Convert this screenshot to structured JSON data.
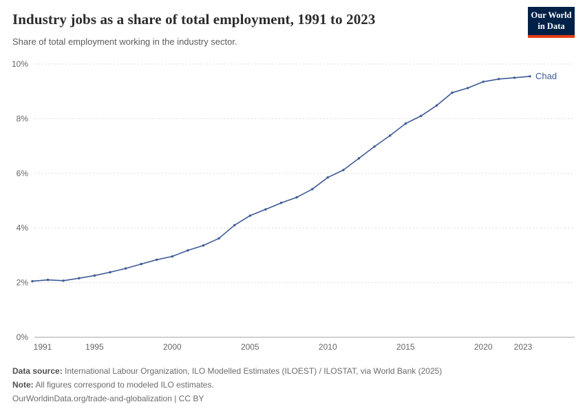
{
  "header": {
    "title": "Industry jobs as a share of total employment, 1991 to 2023",
    "subtitle": "Share of total employment working in the industry sector.",
    "logo": {
      "line1": "Our World",
      "line2": "in Data",
      "bg_color": "#002147",
      "accent_color": "#e63e13"
    }
  },
  "chart_data": {
    "type": "line",
    "title": "Industry jobs as a share of total employment, 1991 to 2023",
    "xlabel": "",
    "ylabel": "",
    "xlim": [
      1991,
      2023
    ],
    "ylim": [
      0,
      10
    ],
    "grid": "horizontal-dashed",
    "legend": "end-of-line-label",
    "grid_color": "#dcdcdc",
    "axis_color": "#a1a1a1",
    "xticks": [
      1991,
      1995,
      2000,
      2005,
      2010,
      2015,
      2020,
      2023
    ],
    "yticks": [
      {
        "value": 0,
        "label": "0%"
      },
      {
        "value": 2,
        "label": "2%"
      },
      {
        "value": 4,
        "label": "4%"
      },
      {
        "value": 6,
        "label": "6%"
      },
      {
        "value": 8,
        "label": "8%"
      },
      {
        "value": 10,
        "label": "10%"
      }
    ],
    "series": [
      {
        "name": "Chad",
        "color": "#3d5a94",
        "x": [
          1991,
          1992,
          1993,
          1994,
          1995,
          1996,
          1997,
          1998,
          1999,
          2000,
          2001,
          2002,
          2003,
          2004,
          2005,
          2006,
          2007,
          2008,
          2009,
          2010,
          2011,
          2012,
          2013,
          2014,
          2015,
          2016,
          2017,
          2018,
          2019,
          2020,
          2021,
          2022,
          2023
        ],
        "values": [
          2.05,
          2.1,
          2.07,
          2.16,
          2.26,
          2.38,
          2.52,
          2.68,
          2.84,
          2.96,
          3.18,
          3.36,
          3.62,
          4.1,
          4.45,
          4.68,
          4.92,
          5.12,
          5.42,
          5.85,
          6.12,
          6.55,
          6.98,
          7.38,
          7.82,
          8.1,
          8.48,
          8.95,
          9.12,
          9.35,
          9.45,
          9.5,
          9.55
        ]
      }
    ]
  },
  "footer": {
    "datasource_label": "Data source:",
    "datasource": "International Labour Organization, ILO Modelled Estimates (ILOEST) / ILOSTAT, via World Bank (2025)",
    "note_label": "Note:",
    "note": "All figures correspond to modeled ILO estimates.",
    "link": "OurWorldinData.org/trade-and-globalization | CC BY"
  }
}
